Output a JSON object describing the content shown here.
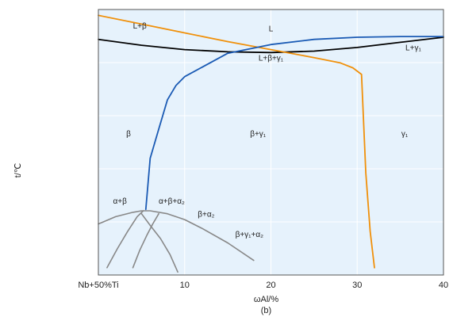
{
  "chart_data": {
    "type": "line",
    "title": "",
    "caption": "(b)",
    "xlabel": "ωAl/%",
    "ylabel": "t/℃",
    "x_ticks": [
      "Nb+50%Ti",
      "10",
      "20",
      "30",
      "40"
    ],
    "xlim": [
      0,
      40
    ],
    "grid": true,
    "background": "#e6f2fc",
    "curves": [
      {
        "name": "",
        "color": "#000000",
        "x": [
          0,
          5,
          10,
          15,
          20,
          25,
          30,
          35,
          40
        ],
        "y": [
          0.915,
          0.875,
          0.845,
          0.83,
          0.825,
          0.835,
          0.86,
          0.895,
          0.93
        ]
      },
      {
        "name": "",
        "color": "#f0900a",
        "x": [
          0,
          5,
          10,
          15,
          20,
          25,
          28,
          29.5,
          30.5,
          31,
          31.5,
          32
        ],
        "y": [
          1.08,
          1.02,
          0.96,
          0.9,
          0.845,
          0.79,
          0.755,
          0.72,
          0.675,
          0.0,
          -0.4,
          -0.65
        ]
      },
      {
        "name": "",
        "color": "#1a5ab4",
        "x": [
          5.5,
          6,
          7,
          8,
          9,
          10,
          15,
          20,
          25,
          30,
          35,
          40
        ],
        "y": [
          -0.25,
          0.1,
          0.3,
          0.5,
          0.6,
          0.66,
          0.82,
          0.88,
          0.915,
          0.93,
          0.935,
          0.935
        ]
      },
      {
        "name": "",
        "color": "#888888",
        "x": [
          0,
          2,
          4,
          5,
          6,
          8,
          10,
          12,
          15,
          18
        ],
        "y": [
          -0.35,
          -0.3,
          -0.27,
          -0.26,
          -0.26,
          -0.28,
          -0.32,
          -0.38,
          -0.48,
          -0.6
        ]
      },
      {
        "name": "",
        "color": "#888888",
        "x": [
          1,
          2.2,
          3.4,
          4.5,
          5.2
        ],
        "y": [
          -0.65,
          -0.52,
          -0.4,
          -0.3,
          -0.26
        ]
      },
      {
        "name": "",
        "color": "#888888",
        "x": [
          4,
          4.8,
          5.6,
          6.3,
          7
        ],
        "y": [
          -0.65,
          -0.53,
          -0.43,
          -0.35,
          -0.28
        ]
      },
      {
        "name": "",
        "color": "#888888",
        "x": [
          5,
          6,
          7.2,
          8.3,
          9.2
        ],
        "y": [
          -0.28,
          -0.36,
          -0.45,
          -0.56,
          -0.68
        ]
      }
    ],
    "region_labels": [
      {
        "text": "L+β",
        "x": 4.8,
        "y": 0.99
      },
      {
        "text": "L",
        "x": 20,
        "y": 0.97
      },
      {
        "text": "L+γ₁",
        "x": 36.5,
        "y": 0.84
      },
      {
        "text": "L+β+γ₁",
        "x": 20,
        "y": 0.77
      },
      {
        "text": "β",
        "x": 3.5,
        "y": 0.25
      },
      {
        "text": "β+γ₁",
        "x": 18.5,
        "y": 0.25
      },
      {
        "text": "γ₁",
        "x": 35.5,
        "y": 0.25
      },
      {
        "text": "α+β",
        "x": 2.5,
        "y": -0.21
      },
      {
        "text": "α+β+α₂",
        "x": 8.5,
        "y": -0.21
      },
      {
        "text": "β+α₂",
        "x": 12.5,
        "y": -0.3
      },
      {
        "text": "β+γ₁+α₂",
        "x": 17.5,
        "y": -0.44
      }
    ]
  }
}
